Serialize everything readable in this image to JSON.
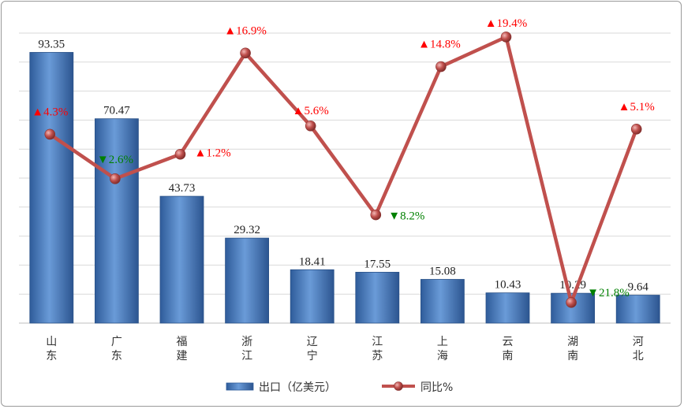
{
  "chart_data": {
    "type": "bar+line",
    "categories": [
      "山东",
      "广东",
      "福建",
      "浙江",
      "辽宁",
      "江苏",
      "上海",
      "云南",
      "湖南",
      "河北"
    ],
    "series": [
      {
        "name": "出口（亿美元）",
        "type": "bar",
        "values": [
          93.35,
          70.47,
          43.73,
          29.32,
          18.41,
          17.55,
          15.08,
          10.43,
          10.29,
          9.64
        ],
        "labels": [
          "93.35",
          "70.47",
          "43.73",
          "29.32",
          "18.41",
          "17.55",
          "15.08",
          "10.43",
          "10.29",
          "9.64"
        ]
      },
      {
        "name": "同比%",
        "type": "line",
        "values": [
          4.3,
          -2.6,
          1.2,
          16.9,
          5.6,
          -8.2,
          14.8,
          19.4,
          -21.8,
          5.1
        ],
        "labels": [
          "▲4.3%",
          "▼2.6%",
          "▲1.2%",
          "▲16.9%",
          "▲5.6%",
          "▼8.2%",
          "▲14.8%",
          "▲19.4%",
          "▼21.8%",
          "▲5.1%"
        ]
      }
    ],
    "bar_axis": {
      "ylim": [
        0,
        100
      ]
    },
    "line_axis": {
      "ylim": [
        -25,
        20
      ]
    },
    "grid": true,
    "legend": "bottom",
    "colors": {
      "bar": "#4f81bd",
      "bar_dark": "#2f5c9a",
      "line": "#c0504d",
      "up": "#ff0000",
      "down": "#008000",
      "grid": "#d9d9d9"
    }
  },
  "legend": {
    "bar_label": "出口（亿美元）",
    "line_label": "同比%"
  }
}
